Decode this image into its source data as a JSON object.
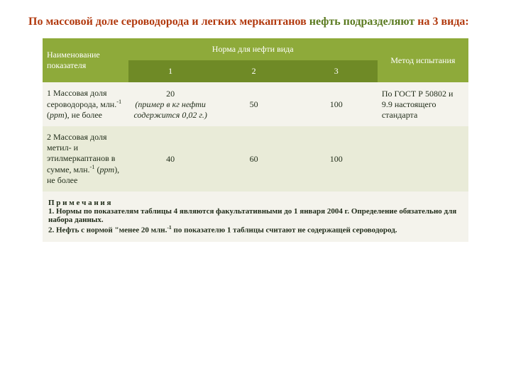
{
  "title": {
    "part1": "По массовой доле сероводорода и легких меркаптанов ",
    "part2": "нефть подразделяют ",
    "part3": "на 3 вида:"
  },
  "table": {
    "headers": {
      "name": "Наименование показателя",
      "norm": "Норма для нефти вида",
      "method": "Метод испытания",
      "c1": "1",
      "c2": "2",
      "c3": "3"
    },
    "row1": {
      "name_a": "1 Массовая доля сероводорода, млн.",
      "name_b": " (",
      "name_c": "ppm",
      "name_d": "), не более",
      "v1_top": "20",
      "v1_note": "(пример в  кг нефти содержится 0,02 г.)",
      "v2": "50",
      "v3": "100",
      "method": "По ГОСТ Р 50802 и 9.9 настоящего стандарта"
    },
    "row2": {
      "name_a": "2 Массовая доля метил- и этилмеркаптанов в сумме, млн.",
      "name_b": " (",
      "name_c": "ppm",
      "name_d": "), не более",
      "v1": "40",
      "v2": "60",
      "v3": "100",
      "method": ""
    },
    "notes": {
      "title": "П р и м е ч а н и я",
      "n1": "1. Нормы по показателям таблицы 4 являются факультативными до 1 января 2004 г. Определение обязательно для набора данных.",
      "n2a": "2. Нефть с нормой \"менее 20 млн.",
      "n2b": " по показателю 1 таблицы считают не содержащей сероводород."
    }
  },
  "style": {
    "header_bg": "#8eaa3a",
    "header_sub_bg": "#6f8a26",
    "row_light_bg": "#f4f3ec",
    "row_pale_bg": "#e9ebd8"
  }
}
